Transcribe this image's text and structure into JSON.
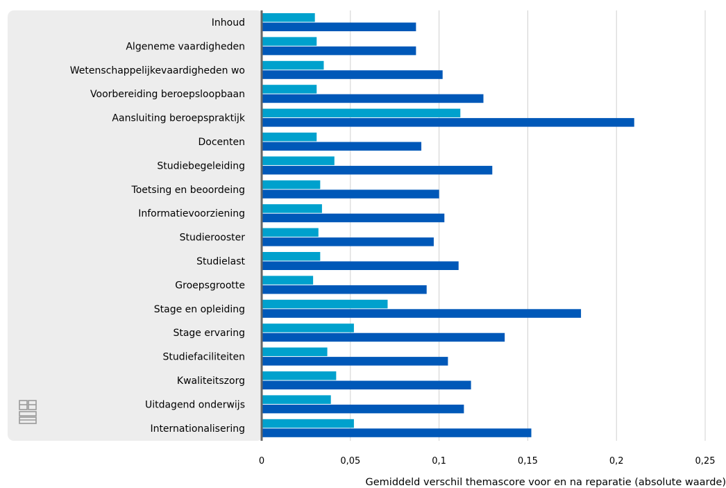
{
  "chart_data": {
    "type": "bar",
    "orientation": "horizontal",
    "categories": [
      "Inhoud",
      "Algeneme vaardigheden",
      "Wetenschappelijkevaardigheden wo",
      "Voorbereiding beroepsloopbaan",
      "Aansluiting beroepspraktijk",
      "Docenten",
      "Studiebegeleiding",
      "Toetsing en beoordeing",
      "Informatievoorziening",
      "Studierooster",
      "Studielast",
      "Groepsgrootte",
      "Stage en opleiding",
      "Stage ervaring",
      "Studiefaciliteiten",
      "Kwaliteitszorg",
      "Uitdagend onderwijs",
      "Internationalisering"
    ],
    "series": [
      {
        "color": "#00A1CD",
        "values": [
          0.03,
          0.031,
          0.035,
          0.031,
          0.112,
          0.031,
          0.041,
          0.033,
          0.034,
          0.032,
          0.033,
          0.029,
          0.071,
          0.052,
          0.037,
          0.042,
          0.039,
          0.052
        ]
      },
      {
        "color": "#0058B8",
        "values": [
          0.087,
          0.087,
          0.102,
          0.125,
          0.21,
          0.09,
          0.13,
          0.1,
          0.103,
          0.097,
          0.111,
          0.093,
          0.18,
          0.137,
          0.105,
          0.118,
          0.114,
          0.152
        ]
      }
    ],
    "xlabel": "Gemiddeld verschil themascore voor en na reparatie (absolute waarde)",
    "ylabel": "",
    "xlim": [
      0,
      0.25
    ],
    "xticks": [
      0,
      0.05,
      0.1,
      0.15,
      0.2,
      0.25
    ],
    "xtick_labels": [
      "0",
      "0,05",
      "0,1",
      "0,15",
      "0,2",
      "0,25"
    ],
    "grid": "vertical",
    "legend": "none",
    "category_panel_color": "#EDEDED",
    "axis_color": "#666666",
    "gridline_color": "#D0D0D0"
  },
  "logo": {
    "name": "cbs-logo-icon"
  }
}
